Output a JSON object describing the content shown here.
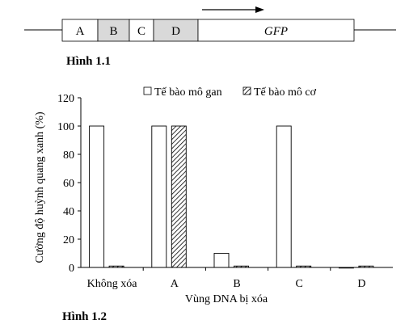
{
  "construct": {
    "segments": [
      {
        "label": "A",
        "shaded": false
      },
      {
        "label": "B",
        "shaded": true
      },
      {
        "label": "C",
        "shaded": false
      },
      {
        "label": "D",
        "shaded": true
      },
      {
        "label": "GFP",
        "shaded": false,
        "italic": true
      }
    ],
    "caption": "Hình 1.1"
  },
  "chart_data": {
    "type": "bar",
    "categories": [
      "Không xóa",
      "A",
      "B",
      "C",
      "D"
    ],
    "series": [
      {
        "name": "Tế bào mô gan",
        "pattern": "empty",
        "values": [
          100,
          100,
          10,
          100,
          0
        ]
      },
      {
        "name": "Tế bào mô cơ",
        "pattern": "hatched",
        "values": [
          1,
          100,
          1,
          1,
          1
        ]
      }
    ],
    "xlabel": "Vùng DNA bị xóa",
    "ylabel": "Cường độ huỳnh quang xanh (%)",
    "ylim": [
      0,
      120
    ],
    "yticks": [
      0,
      20,
      40,
      60,
      80,
      100,
      120
    ],
    "grid": false,
    "legend_position": "top",
    "caption": "Hình 1.2"
  },
  "colors": {
    "line": "#000000",
    "shade": "#d9d9d9",
    "background": "#ffffff"
  }
}
